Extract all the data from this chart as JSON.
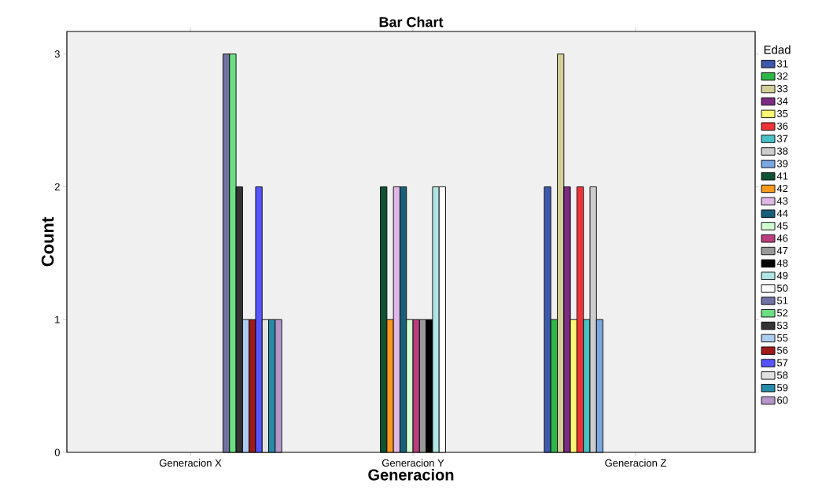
{
  "chart_data": {
    "type": "bar",
    "title": "Bar Chart",
    "xlabel": "Generacion",
    "ylabel": "Count",
    "legend_title": "Edad",
    "legend": "right",
    "categories": [
      "Generacion X",
      "Generacion Y",
      "Generacion Z"
    ],
    "ylim": [
      0,
      3.17
    ],
    "yticks": [
      0,
      1,
      2,
      3
    ],
    "series": [
      {
        "name": "31",
        "color": "#3e58ac",
        "values": [
          null,
          null,
          2
        ]
      },
      {
        "name": "32",
        "color": "#2eb848",
        "values": [
          null,
          null,
          1
        ]
      },
      {
        "name": "33",
        "color": "#d3ce97",
        "values": [
          null,
          null,
          3
        ]
      },
      {
        "name": "34",
        "color": "#7b2b81",
        "values": [
          null,
          null,
          2
        ]
      },
      {
        "name": "35",
        "color": "#fbf873",
        "values": [
          null,
          null,
          1
        ]
      },
      {
        "name": "36",
        "color": "#ef3338",
        "values": [
          null,
          null,
          2
        ]
      },
      {
        "name": "37",
        "color": "#48c2c5",
        "values": [
          null,
          null,
          1
        ]
      },
      {
        "name": "38",
        "color": "#cccccc",
        "values": [
          null,
          null,
          2
        ]
      },
      {
        "name": "39",
        "color": "#7ba7e1",
        "values": [
          null,
          null,
          1
        ]
      },
      {
        "name": "41",
        "color": "#0f5233",
        "values": [
          null,
          2,
          null
        ]
      },
      {
        "name": "42",
        "color": "#f8981d",
        "values": [
          null,
          1,
          null
        ]
      },
      {
        "name": "43",
        "color": "#dfb8e6",
        "values": [
          null,
          2,
          null
        ]
      },
      {
        "name": "44",
        "color": "#1a5f79",
        "values": [
          null,
          2,
          null
        ]
      },
      {
        "name": "45",
        "color": "#d2ffd2",
        "values": [
          null,
          1,
          null
        ]
      },
      {
        "name": "46",
        "color": "#bb3f7f",
        "values": [
          null,
          1,
          null
        ]
      },
      {
        "name": "47",
        "color": "#999999",
        "values": [
          null,
          1,
          null
        ]
      },
      {
        "name": "48",
        "color": "#000000",
        "values": [
          null,
          1,
          null
        ]
      },
      {
        "name": "49",
        "color": "#b2e4e4",
        "values": [
          null,
          2,
          null
        ]
      },
      {
        "name": "50",
        "color": "#ffffff",
        "values": [
          null,
          2,
          null
        ]
      },
      {
        "name": "51",
        "color": "#7373a3",
        "values": [
          3,
          null,
          null
        ]
      },
      {
        "name": "52",
        "color": "#6ddf82",
        "values": [
          3,
          null,
          null
        ]
      },
      {
        "name": "53",
        "color": "#333333",
        "values": [
          2,
          null,
          null
        ]
      },
      {
        "name": "55",
        "color": "#abcdef",
        "values": [
          1,
          null,
          null
        ]
      },
      {
        "name": "56",
        "color": "#a11a1a",
        "values": [
          1,
          null,
          null
        ]
      },
      {
        "name": "57",
        "color": "#5555ff",
        "values": [
          2,
          null,
          null
        ]
      },
      {
        "name": "58",
        "color": "#e2e2e2",
        "values": [
          1,
          null,
          null
        ]
      },
      {
        "name": "59",
        "color": "#258ba9",
        "values": [
          1,
          null,
          null
        ]
      },
      {
        "name": "60",
        "color": "#b496c8",
        "values": [
          1,
          null,
          null
        ]
      }
    ]
  }
}
